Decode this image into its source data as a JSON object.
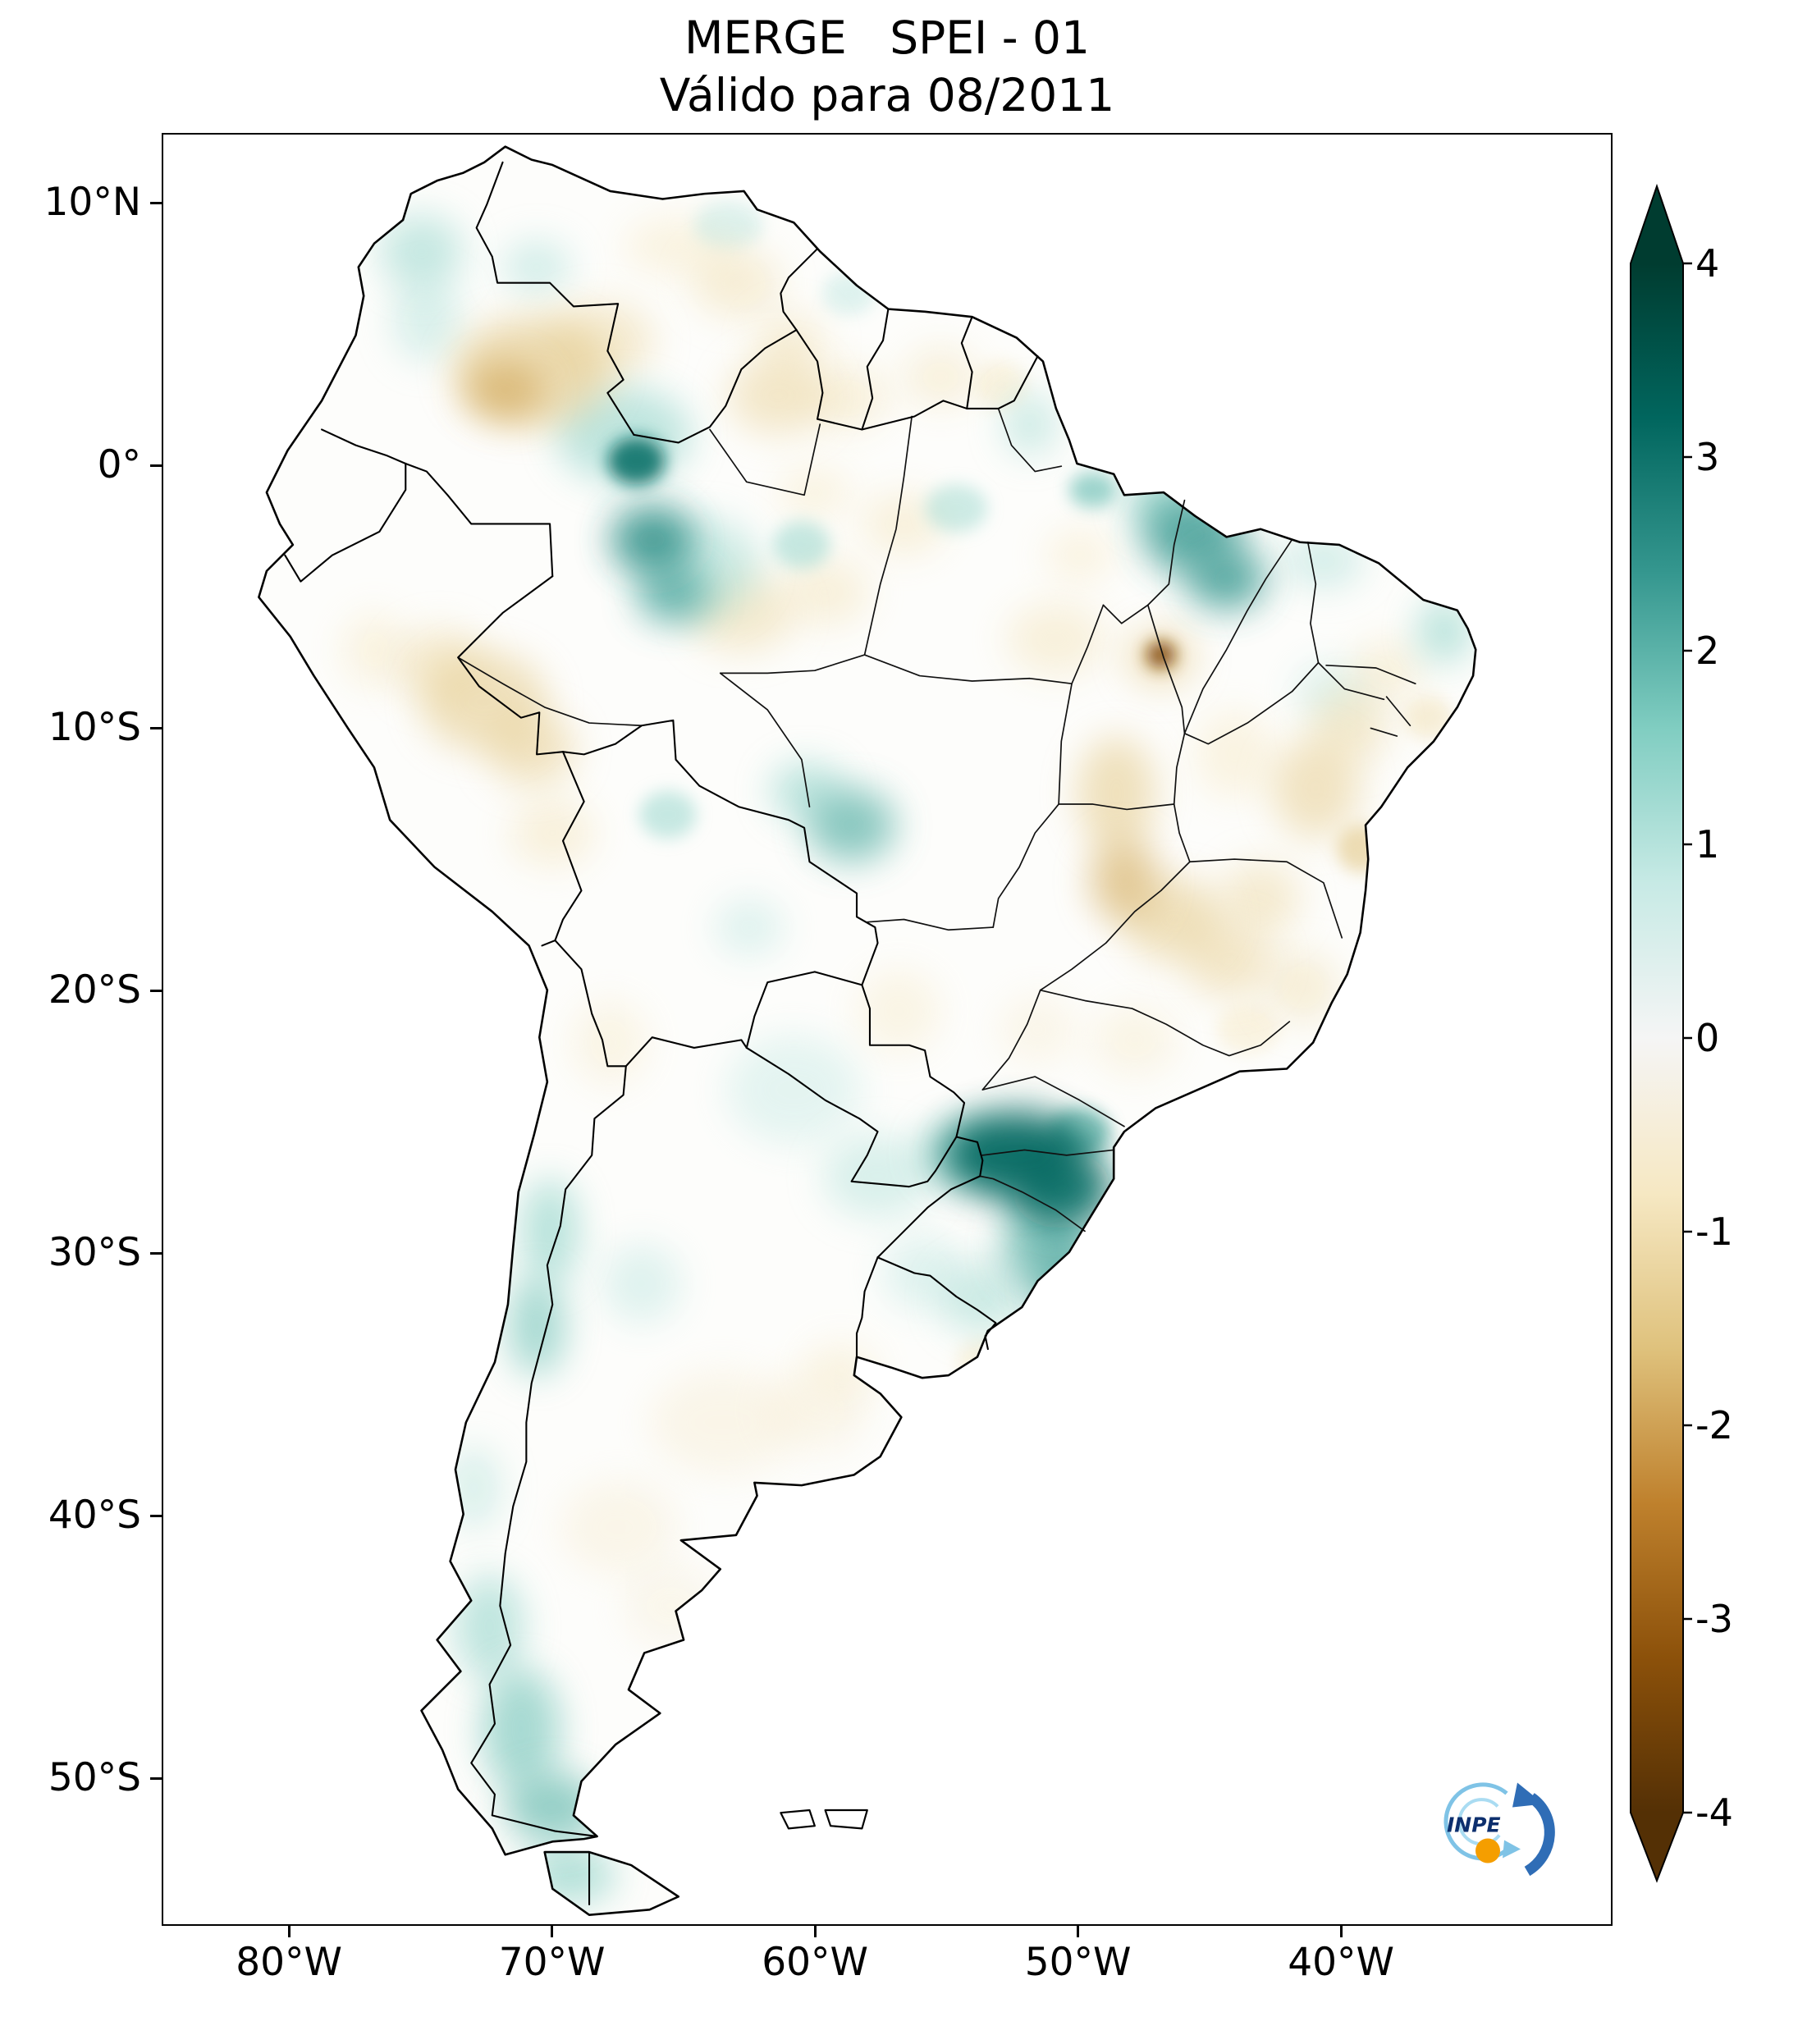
{
  "title": {
    "line1": "MERGE   SPEI - 01",
    "line2": "Válido para 08/2011"
  },
  "axes": {
    "lat_ticks": [
      {
        "label": "10°N",
        "lat": 10
      },
      {
        "label": "0°",
        "lat": 0
      },
      {
        "label": "10°S",
        "lat": -10
      },
      {
        "label": "20°S",
        "lat": -20
      },
      {
        "label": "30°S",
        "lat": -30
      },
      {
        "label": "40°S",
        "lat": -40
      },
      {
        "label": "50°S",
        "lat": -50
      }
    ],
    "lon_ticks": [
      {
        "label": "80°W",
        "lon": -80
      },
      {
        "label": "70°W",
        "lon": -70
      },
      {
        "label": "60°W",
        "lon": -60
      },
      {
        "label": "50°W",
        "lon": -50
      },
      {
        "label": "40°W",
        "lon": -40
      }
    ]
  },
  "colorbar": {
    "vmin": -4,
    "vmax": 4,
    "extend": "both",
    "colormap": "BrBG",
    "ticks": [
      {
        "label": "4",
        "v": 4
      },
      {
        "label": "3",
        "v": 3
      },
      {
        "label": "2",
        "v": 2
      },
      {
        "label": "1",
        "v": 1
      },
      {
        "label": "0",
        "v": 0
      },
      {
        "label": "-1",
        "v": -1
      },
      {
        "label": "-2",
        "v": -2
      },
      {
        "label": "-3",
        "v": -3
      },
      {
        "label": "-4",
        "v": -4
      }
    ],
    "stops": [
      [
        -4,
        "#543005"
      ],
      [
        -3.2,
        "#8c510a"
      ],
      [
        -2.4,
        "#bf812d"
      ],
      [
        -1.6,
        "#dfc27d"
      ],
      [
        -0.8,
        "#f6e8c3"
      ],
      [
        0,
        "#f5f5f5"
      ],
      [
        0.8,
        "#c7eae5"
      ],
      [
        1.6,
        "#80cdc1"
      ],
      [
        2.4,
        "#35978f"
      ],
      [
        3.2,
        "#01665e"
      ],
      [
        4,
        "#003c30"
      ]
    ]
  },
  "logo": {
    "text": "INPE"
  },
  "chart_data": {
    "type": "heatmap",
    "title": "MERGE   SPEI - 01",
    "subtitle": "Válido para 08/2011",
    "variable": "SPEI-01",
    "valid_for": "08/2011",
    "region": "South America",
    "lon_range": [
      -85,
      -30
    ],
    "lat_range": [
      -56,
      13
    ],
    "value_range": [
      -4,
      4
    ],
    "anomalies_format": [
      "lon",
      "lat",
      "rx_deg",
      "ry_deg",
      "spei_value",
      "opacity_optional"
    ],
    "anomalies": [
      [
        -66.8,
        0.2,
        1.1,
        0.9,
        3.0
      ],
      [
        -67.3,
        1.2,
        2.6,
        1.8,
        1.4
      ],
      [
        -66.2,
        -2.8,
        1.6,
        1.3,
        2.6
      ],
      [
        -65.4,
        -4.9,
        1.4,
        1.1,
        2.2
      ],
      [
        -64.3,
        -3.8,
        2.2,
        1.8,
        1.2
      ],
      [
        -60.5,
        -3.0,
        1.1,
        0.9,
        1.3
      ],
      [
        -54.6,
        -1.6,
        1.2,
        0.9,
        1.2
      ],
      [
        -45.6,
        -2.6,
        1.9,
        1.5,
        2.4
      ],
      [
        -44.3,
        -4.3,
        1.5,
        1.2,
        2.4
      ],
      [
        -46.8,
        -1.4,
        1.3,
        1.0,
        1.6
      ],
      [
        -49.4,
        -0.9,
        0.9,
        0.7,
        1.8
      ],
      [
        -40.6,
        -3.6,
        1.5,
        1.0,
        1.1
      ],
      [
        -36.0,
        -6.3,
        1.0,
        1.2,
        1.5
      ],
      [
        -40.3,
        -8.6,
        1.4,
        1.1,
        0.9
      ],
      [
        -51.8,
        1.6,
        1.0,
        1.2,
        1.2
      ],
      [
        -75.0,
        8.2,
        1.6,
        1.4,
        1.3
      ],
      [
        -74.8,
        5.6,
        1.3,
        1.6,
        1.0
      ],
      [
        -70.6,
        7.6,
        1.3,
        1.0,
        1.1
      ],
      [
        -63.3,
        9.2,
        1.3,
        0.9,
        0.9
      ],
      [
        -58.7,
        6.6,
        1.0,
        0.8,
        0.9
      ],
      [
        -58.6,
        -13.7,
        1.7,
        1.4,
        2.0
      ],
      [
        -60.3,
        -12.4,
        1.4,
        1.1,
        1.4
      ],
      [
        -65.6,
        -13.3,
        1.1,
        0.9,
        1.3
      ],
      [
        -62.5,
        -17.6,
        1.3,
        1.1,
        0.9
      ],
      [
        -60.8,
        -23.8,
        2.6,
        2.1,
        0.8
      ],
      [
        -57.6,
        -27.1,
        2.1,
        1.6,
        1.0
      ],
      [
        -52.3,
        -26.3,
        2.7,
        1.7,
        3.2
      ],
      [
        -50.6,
        -27.6,
        1.9,
        1.5,
        3.0
      ],
      [
        -54.3,
        -26.2,
        1.6,
        1.2,
        1.8
      ],
      [
        -51.2,
        -29.8,
        1.7,
        1.6,
        2.0
      ],
      [
        -50.3,
        -31.3,
        1.3,
        1.4,
        2.2
      ],
      [
        -53.6,
        -31.8,
        1.6,
        1.3,
        1.2
      ],
      [
        -55.8,
        -30.8,
        1.6,
        1.4,
        0.9
      ],
      [
        -70.1,
        -29.2,
        1.1,
        2.0,
        1.5
      ],
      [
        -70.6,
        -32.8,
        1.1,
        1.9,
        1.7
      ],
      [
        -66.6,
        -31.2,
        1.5,
        1.5,
        0.9
      ],
      [
        -72.4,
        -44.3,
        1.3,
        2.0,
        1.4
      ],
      [
        -71.2,
        -48.2,
        1.5,
        2.3,
        1.7
      ],
      [
        -70.0,
        -51.2,
        1.8,
        1.3,
        1.9
      ],
      [
        -69.3,
        -53.8,
        1.7,
        1.0,
        1.6
      ],
      [
        -73.0,
        -39.0,
        1.0,
        1.6,
        1.0
      ],
      [
        -49.9,
        -25.4,
        1.2,
        0.9,
        2.0
      ],
      [
        -70.8,
        3.6,
        3.0,
        2.1,
        -1.5
      ],
      [
        -71.8,
        2.9,
        1.5,
        1.1,
        -1.9
      ],
      [
        -68.2,
        4.8,
        2.1,
        1.5,
        -1.1
      ],
      [
        -65.2,
        8.4,
        2.1,
        1.1,
        -0.8
      ],
      [
        -63.0,
        7.0,
        1.7,
        1.3,
        -1.0
      ],
      [
        -61.4,
        2.7,
        1.9,
        1.5,
        -1.2
      ],
      [
        -58.8,
        2.6,
        1.6,
        1.2,
        -0.9
      ],
      [
        -55.2,
        3.4,
        1.4,
        1.1,
        -0.9
      ],
      [
        -52.9,
        3.1,
        1.0,
        0.9,
        -0.8
      ],
      [
        -56.6,
        -2.2,
        1.6,
        1.2,
        -0.9
      ],
      [
        -60.0,
        -1.0,
        1.4,
        1.0,
        -0.8
      ],
      [
        -62.8,
        -5.6,
        2.0,
        1.5,
        -1.1
      ],
      [
        -59.6,
        -4.8,
        1.7,
        1.3,
        -0.9
      ],
      [
        -72.6,
        -9.0,
        2.4,
        1.9,
        -1.4
      ],
      [
        -70.8,
        -10.8,
        1.7,
        1.4,
        -1.3
      ],
      [
        -74.3,
        -7.6,
        1.7,
        1.4,
        -1.1
      ],
      [
        -76.8,
        -7.0,
        1.2,
        1.4,
        -0.8
      ],
      [
        -70.0,
        -14.0,
        1.6,
        1.3,
        -0.9
      ],
      [
        -50.8,
        -6.6,
        1.9,
        1.4,
        -0.9
      ],
      [
        -46.8,
        -7.2,
        0.55,
        0.5,
        -3.3,
        0.95
      ],
      [
        -46.8,
        -7.3,
        1.3,
        1.1,
        -1.4
      ],
      [
        -48.5,
        -12.5,
        1.5,
        2.2,
        -1.4
      ],
      [
        -48.2,
        -15.8,
        1.3,
        1.6,
        -1.8
      ],
      [
        -46.3,
        -17.3,
        1.9,
        1.6,
        -1.4
      ],
      [
        -44.2,
        -18.9,
        1.7,
        1.4,
        -1.2
      ],
      [
        -43.0,
        -16.5,
        1.5,
        1.4,
        -1.1
      ],
      [
        -40.9,
        -12.3,
        1.7,
        1.9,
        -1.3
      ],
      [
        -39.6,
        -9.9,
        1.5,
        1.4,
        -1.1
      ],
      [
        -38.2,
        -7.8,
        1.3,
        1.1,
        -0.9
      ],
      [
        -39.2,
        -14.6,
        0.9,
        0.9,
        -1.5
      ],
      [
        -41.4,
        -19.9,
        1.3,
        1.3,
        -1.0
      ],
      [
        -43.5,
        -21.5,
        1.2,
        0.9,
        -0.8
      ],
      [
        -47.8,
        -21.9,
        1.6,
        1.3,
        -0.7
      ],
      [
        -51.5,
        -21.5,
        1.5,
        1.3,
        -0.6
      ],
      [
        -56.8,
        -20.8,
        1.6,
        1.6,
        -0.7
      ],
      [
        -63.5,
        -36.5,
        2.8,
        2.0,
        -0.6
      ],
      [
        -60.0,
        -36.0,
        1.9,
        1.6,
        -0.6
      ],
      [
        -67.5,
        -40.5,
        2.2,
        1.8,
        -0.6
      ],
      [
        -65.5,
        -43.5,
        1.8,
        1.5,
        -0.5
      ],
      [
        -59.0,
        -34.5,
        1.4,
        1.1,
        -0.7
      ],
      [
        -53.5,
        -34.2,
        1.1,
        0.9,
        -0.8
      ],
      [
        -67.8,
        -22.0,
        1.4,
        1.6,
        -0.7
      ],
      [
        -44.0,
        -11.0,
        1.5,
        1.7,
        -0.8
      ],
      [
        -49.9,
        -3.4,
        1.3,
        1.0,
        -0.8
      ],
      [
        -36.6,
        -9.6,
        0.9,
        0.8,
        -1.0
      ],
      [
        -60.9,
        4.7,
        1.3,
        1.1,
        -1.0
      ]
    ]
  }
}
